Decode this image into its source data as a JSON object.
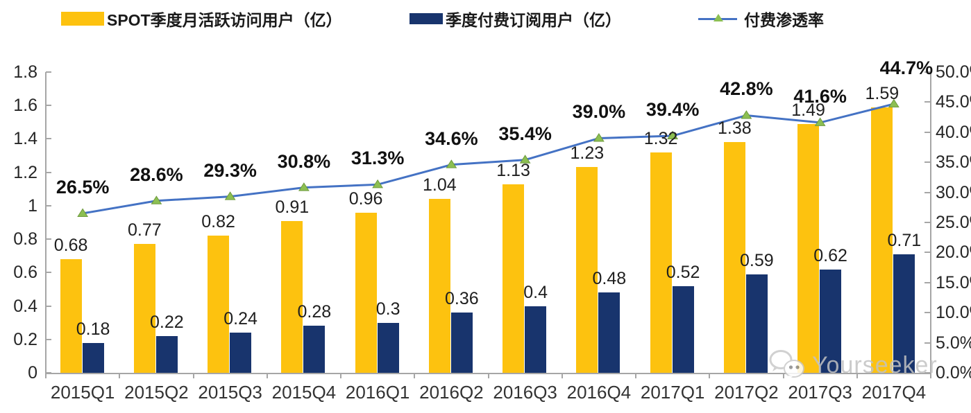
{
  "legend": {
    "items": [
      {
        "label": "SPOT季度月活跃访问用户（亿）"
      },
      {
        "label": "季度付费订阅用户（亿）"
      },
      {
        "label": "付费渗透率"
      }
    ]
  },
  "watermark": {
    "text": "Yourseeker",
    "icon": "wechat-icon"
  },
  "colors": {
    "mau_bar": "#FDC20F",
    "subs_bar": "#18346D",
    "line": "#4472C4",
    "marker_fill": "#8CBF52",
    "marker_stroke": "#6E9A3D",
    "axis": "#A6A6A6",
    "watermark": "#C2C2C2"
  },
  "chart_data": {
    "type": "combo",
    "legend_position": "top",
    "grid": false,
    "categories": [
      "2015Q1",
      "2015Q2",
      "2015Q3",
      "2015Q4",
      "2016Q1",
      "2016Q2",
      "2016Q3",
      "2016Q4",
      "2017Q1",
      "2017Q2",
      "2017Q3",
      "2017Q4"
    ],
    "series": [
      {
        "name": "SPOT季度月活跃访问用户（亿）",
        "type": "bar",
        "axis": "left",
        "color": "#FDC20F",
        "values": [
          0.68,
          0.77,
          0.82,
          0.91,
          0.96,
          1.04,
          1.13,
          1.23,
          1.32,
          1.38,
          1.49,
          1.59
        ],
        "labels": [
          "0.68",
          "0.77",
          "0.82",
          "0.91",
          "0.96",
          "1.04",
          "1.13",
          "1.23",
          "1.32",
          "1.38",
          "1.49",
          "1.59"
        ]
      },
      {
        "name": "季度付费订阅用户（亿）",
        "type": "bar",
        "axis": "left",
        "color": "#18346D",
        "values": [
          0.18,
          0.22,
          0.24,
          0.28,
          0.3,
          0.36,
          0.4,
          0.48,
          0.52,
          0.59,
          0.62,
          0.71
        ],
        "labels": [
          "0.18",
          "0.22",
          "0.24",
          "0.28",
          "0.3",
          "0.36",
          "0.4",
          "0.48",
          "0.52",
          "0.59",
          "0.62",
          "0.71"
        ]
      },
      {
        "name": "付费渗透率",
        "type": "line",
        "axis": "right",
        "color": "#4472C4",
        "marker": "triangle",
        "marker_color": "#8CBF52",
        "marker_stroke": "#6E9A3D",
        "values": [
          26.5,
          28.6,
          29.3,
          30.8,
          31.3,
          34.6,
          35.4,
          39.0,
          39.4,
          42.8,
          41.6,
          44.7
        ],
        "labels": [
          "26.5%",
          "28.6%",
          "29.3%",
          "30.8%",
          "31.3%",
          "34.6%",
          "35.4%",
          "39.0%",
          "39.4%",
          "42.8%",
          "41.6%",
          "44.7%"
        ]
      }
    ],
    "left_axis": {
      "min": 0,
      "max": 1.8,
      "step": 0.2,
      "tick_labels": [
        "0",
        "0.2",
        "0.4",
        "0.6",
        "0.8",
        "1",
        "1.2",
        "1.4",
        "1.6",
        "1.8"
      ]
    },
    "right_axis": {
      "min": 0,
      "max": 50,
      "step": 5,
      "tick_labels": [
        "0.0%",
        "5.0%",
        "10.0%",
        "15.0%",
        "20.0%",
        "25.0%",
        "30.0%",
        "35.0%",
        "40.0%",
        "45.0%",
        "50.0%"
      ]
    }
  }
}
